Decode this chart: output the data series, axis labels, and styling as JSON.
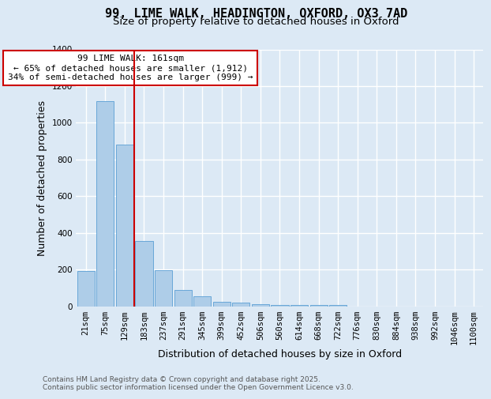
{
  "title": "99, LIME WALK, HEADINGTON, OXFORD, OX3 7AD",
  "subtitle": "Size of property relative to detached houses in Oxford",
  "xlabel": "Distribution of detached houses by size in Oxford",
  "ylabel": "Number of detached properties",
  "categories": [
    "21sqm",
    "75sqm",
    "129sqm",
    "183sqm",
    "237sqm",
    "291sqm",
    "345sqm",
    "399sqm",
    "452sqm",
    "506sqm",
    "560sqm",
    "614sqm",
    "668sqm",
    "722sqm",
    "776sqm",
    "830sqm",
    "884sqm",
    "938sqm",
    "992sqm",
    "1046sqm",
    "1100sqm"
  ],
  "values": [
    190,
    1120,
    880,
    355,
    195,
    90,
    55,
    22,
    20,
    12,
    8,
    8,
    8,
    5,
    0,
    0,
    0,
    0,
    0,
    0,
    0
  ],
  "bar_color": "#aecde8",
  "bar_edge_color": "#5a9fd4",
  "red_line_x": 2.5,
  "annotation_text": "99 LIME WALK: 161sqm\n← 65% of detached houses are smaller (1,912)\n34% of semi-detached houses are larger (999) →",
  "annotation_box_color": "#ffffff",
  "annotation_box_edge_color": "#cc0000",
  "ylim": [
    0,
    1400
  ],
  "yticks": [
    0,
    200,
    400,
    600,
    800,
    1000,
    1200,
    1400
  ],
  "background_color": "#dce9f5",
  "plot_bg_color": "#dce9f5",
  "grid_color": "#ffffff",
  "footer_line1": "Contains HM Land Registry data © Crown copyright and database right 2025.",
  "footer_line2": "Contains public sector information licensed under the Open Government Licence v3.0.",
  "title_fontsize": 11,
  "subtitle_fontsize": 9.5,
  "axis_label_fontsize": 9,
  "tick_fontsize": 7.5,
  "annotation_fontsize": 8,
  "footer_fontsize": 6.5
}
